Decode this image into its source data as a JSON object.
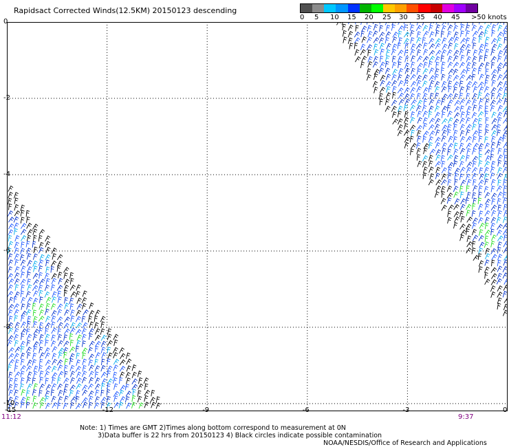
{
  "title": "Rapidsact Corrected Winds(12.5KM) 20150123 descending",
  "legend": {
    "colors": [
      "#505050",
      "#8c8c8c",
      "#00c8ff",
      "#0096ff",
      "#0032ff",
      "#00b400",
      "#00ff00",
      "#ffc800",
      "#ffa000",
      "#ff5000",
      "#ff0000",
      "#c80000",
      "#e000e0",
      "#a000ff",
      "#7000a0"
    ],
    "labels": [
      "0",
      "5",
      "10",
      "15",
      "20",
      "25",
      "30",
      "35",
      "40",
      "45",
      ">50 knots"
    ]
  },
  "axes": {
    "x_ticks": [
      "-12",
      "-9",
      "-6",
      "-3",
      "0"
    ],
    "x_corner": "-15",
    "y_ticks": [
      "0",
      "-2",
      "-4",
      "-6",
      "-8",
      "-10"
    ]
  },
  "times": {
    "left": "11:12",
    "right": "9:37"
  },
  "notes": {
    "line1": "Note: 1) Times are GMT 2)Times along bottom correspond to measurement at 0N",
    "line2": "3)Data buffer is 22 hrs from 20150123 4) Black circles indicate possible contamination",
    "line3": "NOAA/NESDIS/Office of Research and Applications"
  },
  "chart_data": {
    "type": "map",
    "title": "Rapidsact Corrected Winds(12.5KM) 20150123 descending",
    "xlim": [
      -15,
      0
    ],
    "ylim": [
      -10.2,
      0
    ],
    "x_ticks": [
      -12,
      -9,
      -6,
      -3,
      0
    ],
    "y_ticks": [
      0,
      -2,
      -4,
      -6,
      -8,
      -10
    ],
    "grid": true,
    "swaths": [
      {
        "name": "east",
        "time": "9:37",
        "polygon": [
          [
            -5.3,
            0
          ],
          [
            0,
            0
          ],
          [
            0,
            -8.0
          ]
        ],
        "dominant_speed_knots": "10-15"
      },
      {
        "name": "west",
        "time": "11:12",
        "polygon": [
          [
            -15,
            -4.3
          ],
          [
            -15,
            -10.2
          ],
          [
            -10.3,
            -10.2
          ]
        ],
        "dominant_speed_knots": "10-20"
      }
    ],
    "colorbar": {
      "min": 0,
      "max": 50,
      "step": 5,
      "unit": "knots"
    }
  }
}
